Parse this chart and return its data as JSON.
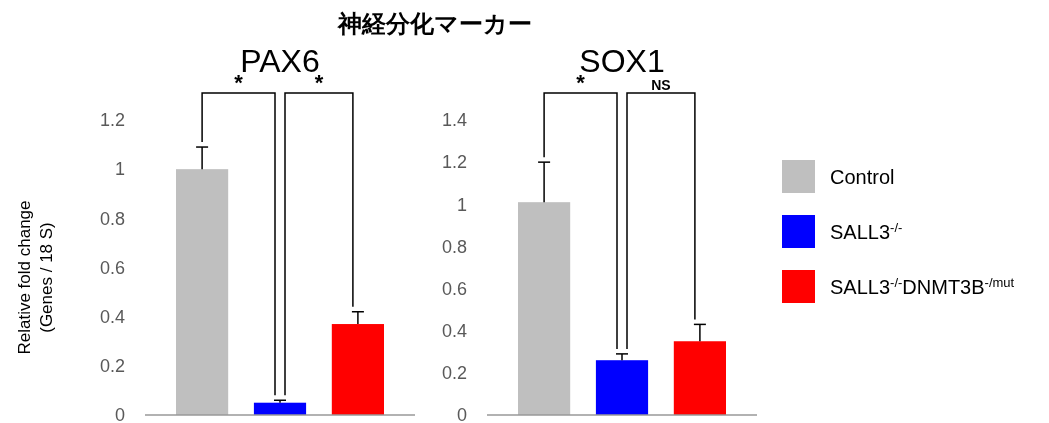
{
  "chart_data": [
    {
      "type": "bar",
      "title": "PAX6",
      "ylabel": "Relative fold change (Genes / 18 S)",
      "categories": [
        null
      ],
      "ylim": [
        0,
        1.2
      ],
      "yticks": [
        0,
        0.2,
        0.4,
        0.6,
        0.8,
        1,
        1.2
      ],
      "grid": false,
      "series": [
        {
          "color": "#bfbfbf",
          "values": [
            1.0
          ],
          "errors": [
            [
              1.0,
              1.09
            ]
          ]
        },
        {
          "color": "#0000ff",
          "values": [
            0.05
          ],
          "errors": [
            [
              0.05,
              0.06
            ]
          ]
        },
        {
          "color": "#ff0000",
          "values": [
            0.37
          ],
          "errors": [
            [
              0.37,
              0.42
            ]
          ]
        }
      ],
      "annotations": [
        "神経分化マーカー",
        "*",
        "*"
      ]
    },
    {
      "type": "bar",
      "title": "SOX1",
      "categories": [
        null
      ],
      "ylim": [
        0,
        1.4
      ],
      "yticks": [
        0,
        0.2,
        0.4,
        0.6,
        0.8,
        1,
        1.2,
        1.4
      ],
      "grid": false,
      "legend": "right",
      "series": [
        {
          "name": "Control",
          "color": "#bfbfbf",
          "values": [
            1.01
          ],
          "errors": [
            [
              1.01,
              1.2
            ]
          ]
        },
        {
          "name": "SALL3$^{-/-}$",
          "color": "#0000ff",
          "values": [
            0.26
          ],
          "errors": [
            [
              0.26,
              0.29
            ]
          ]
        },
        {
          "name": "SALL3$^{-/-}$DNMT3B$^{-/mut}$",
          "color": "#ff0000",
          "values": [
            0.35
          ],
          "errors": [
            [
              0.35,
              0.43
            ]
          ]
        }
      ],
      "annotations": [
        "*",
        "NS"
      ]
    }
  ]
}
